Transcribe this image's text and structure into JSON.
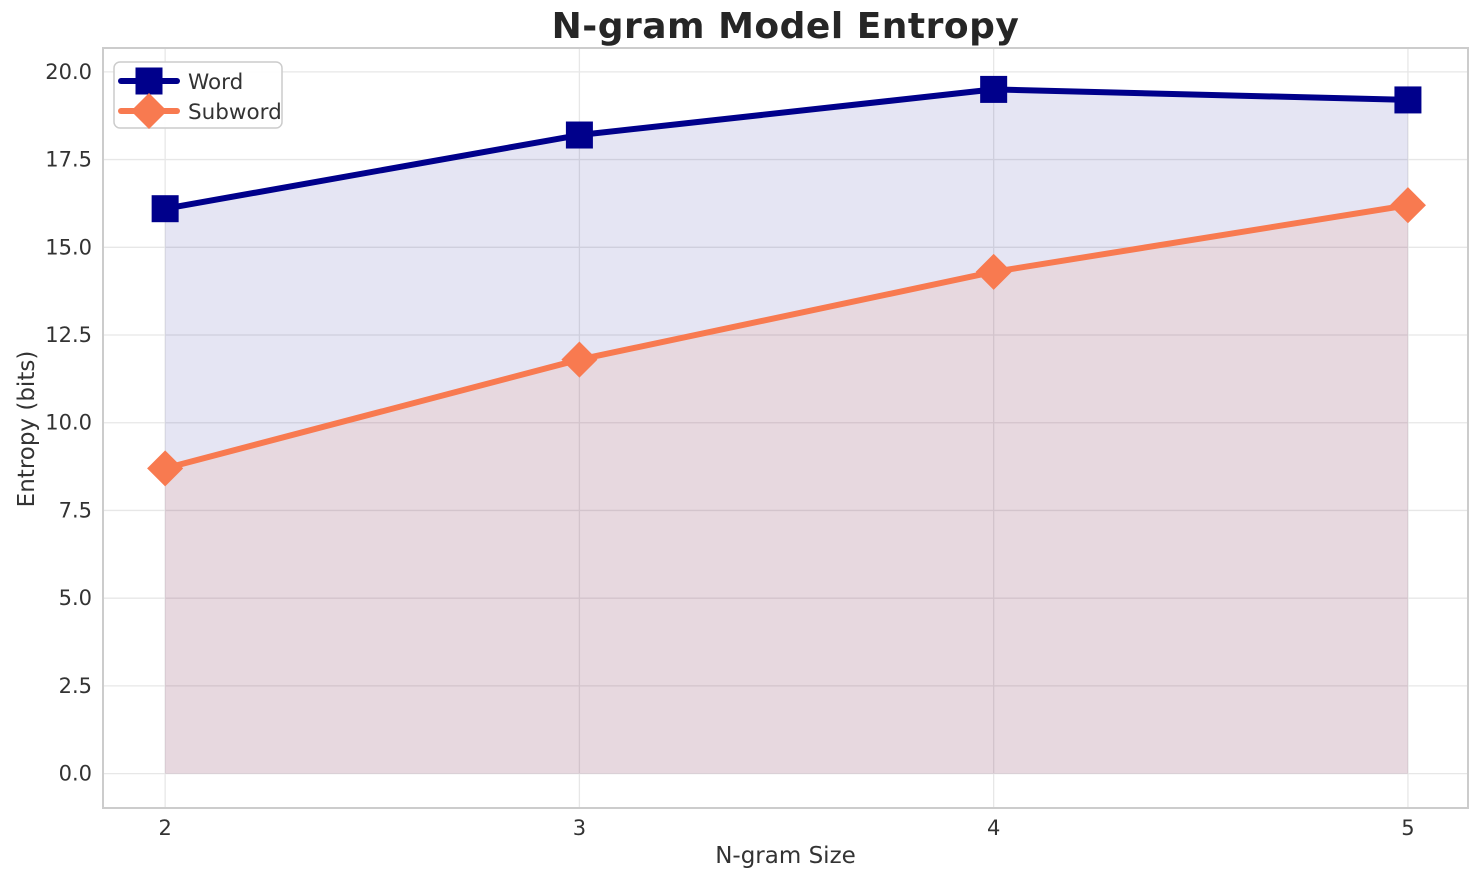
{
  "chart_data": {
    "type": "line",
    "title": "N-gram Model Entropy",
    "xlabel": "N-gram Size",
    "ylabel": "Entropy (bits)",
    "x": [
      2,
      3,
      4,
      5
    ],
    "series": [
      {
        "name": "Word",
        "values": [
          16.1,
          18.2,
          19.5,
          19.2
        ],
        "color": "#00008B",
        "marker": "square",
        "fill_to_zero": true,
        "fill_opacity": 0.1
      },
      {
        "name": "Subword",
        "values": [
          8.7,
          11.8,
          14.3,
          16.2
        ],
        "color": "#F87A50",
        "marker": "diamond",
        "fill_to_zero": true,
        "fill_opacity": 0.12
      }
    ],
    "xticks": [
      "2",
      "3",
      "4",
      "5"
    ],
    "xtick_values": [
      2,
      3,
      4,
      5
    ],
    "yticks": [
      "0.0",
      "2.5",
      "5.0",
      "7.5",
      "10.0",
      "12.5",
      "15.0",
      "17.5",
      "20.0"
    ],
    "ytick_values": [
      0,
      2.5,
      5,
      7.5,
      10,
      12.5,
      15,
      17.5,
      20
    ],
    "xlim": [
      1.85,
      5.145
    ],
    "ylim": [
      -0.98,
      20.68
    ],
    "grid": true,
    "legend": {
      "position": "upper-left",
      "entries": [
        "Word",
        "Subword"
      ]
    }
  },
  "style": {
    "background": "#ffffff",
    "grid_color": "#e7e7e7",
    "spine_color": "#cccccc",
    "tick_text_color": "#333333",
    "title_color": "#262626",
    "legend_border_color": "#cccccc",
    "legend_background": "#ffffff"
  }
}
